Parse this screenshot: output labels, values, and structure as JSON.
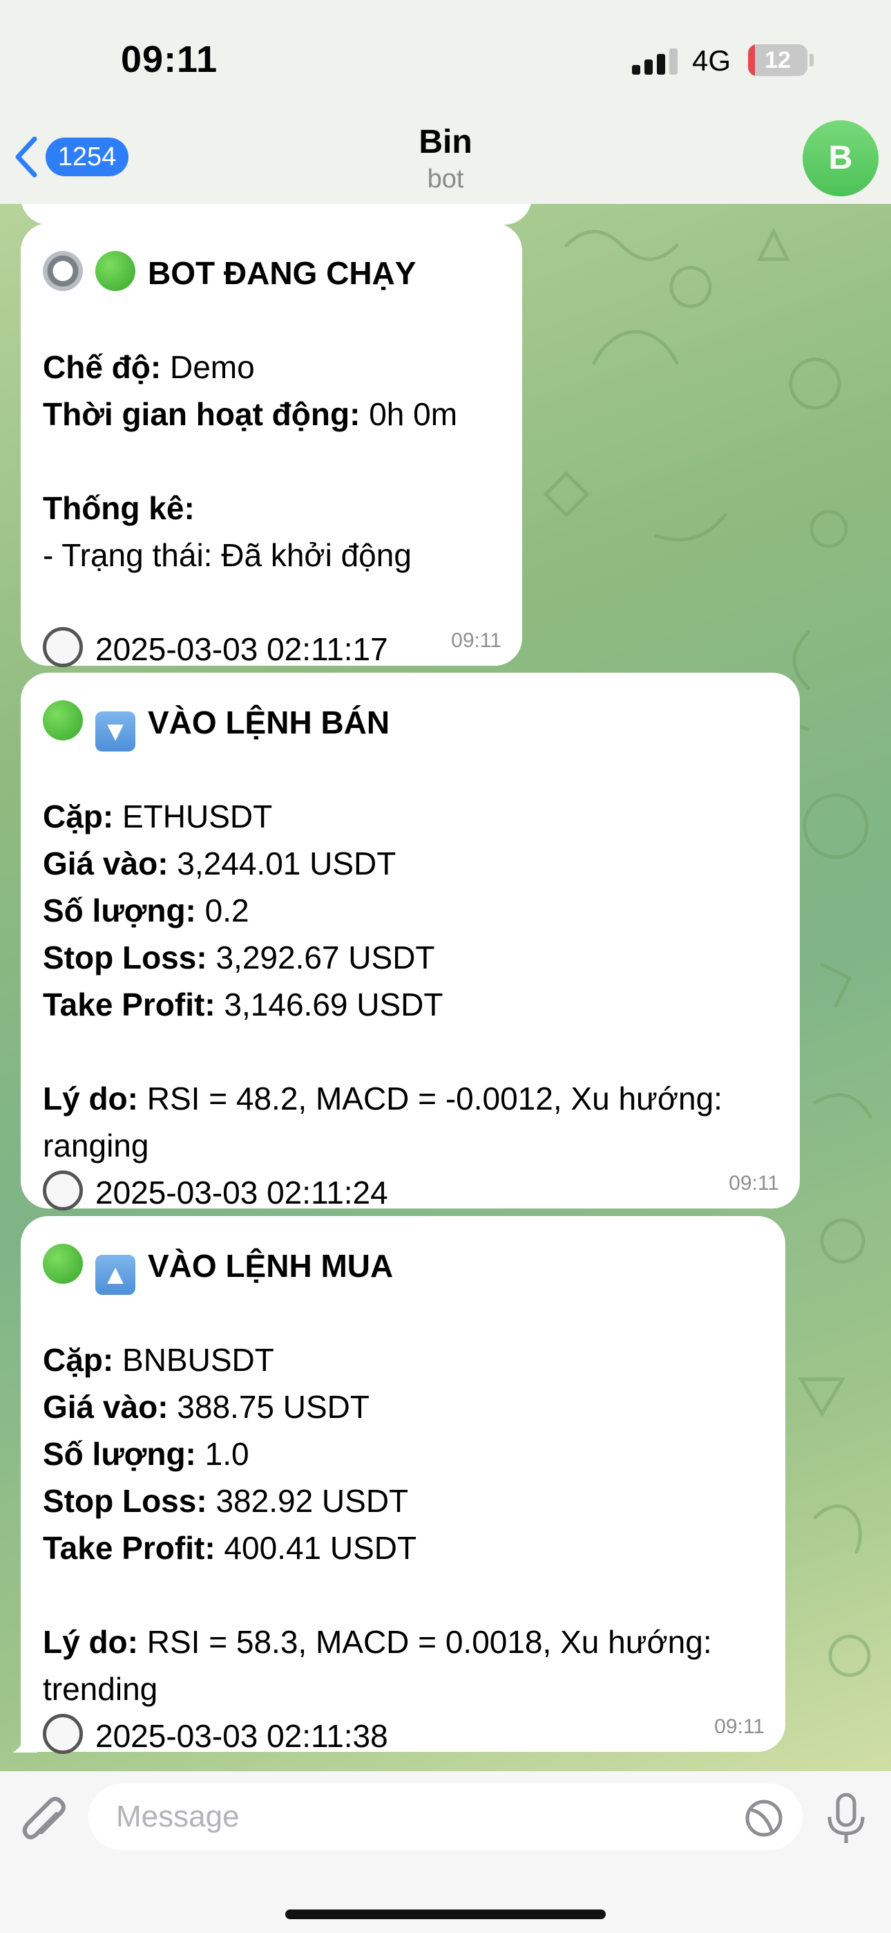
{
  "status_bar": {
    "time": "09:11",
    "network": "4G",
    "battery": "12",
    "battery_level_percent": 12,
    "signal_bars_filled": 3
  },
  "header": {
    "back_count": "1254",
    "title": "Bin",
    "subtitle": "bot",
    "avatar_letter": "B"
  },
  "messages": [
    {
      "icons": [
        "gear-icon",
        "green-circle-icon"
      ],
      "title": "BOT ĐANG CHẠY",
      "mode_label": "Chế độ:",
      "mode_value": "Demo",
      "uptime_label": "Thời gian hoạt động:",
      "uptime_value": "0h 0m",
      "stats_label": "Thống kê:",
      "stats_line": "- Trạng thái: Đã khởi động",
      "timestamp": "2025-03-03 02:11:17",
      "time": "09:11"
    },
    {
      "icons": [
        "green-circle-icon",
        "down-arrow-icon"
      ],
      "title": "VÀO LỆNH BÁN",
      "pair_label": "Cặp:",
      "pair_value": "ETHUSDT",
      "entry_label": "Giá vào:",
      "entry_value": "3,244.01 USDT",
      "qty_label": "Số lượng:",
      "qty_value": "0.2",
      "sl_label": "Stop Loss:",
      "sl_value": "3,292.67 USDT",
      "tp_label": "Take Profit:",
      "tp_value": "3,146.69 USDT",
      "reason_label": "Lý do:",
      "reason_value": "RSI = 48.2, MACD = -0.0012, Xu hướng: ranging",
      "timestamp": "2025-03-03 02:11:24",
      "time": "09:11"
    },
    {
      "icons": [
        "green-circle-icon",
        "up-arrow-icon"
      ],
      "title": "VÀO LỆNH MUA",
      "pair_label": "Cặp:",
      "pair_value": "BNBUSDT",
      "entry_label": "Giá vào:",
      "entry_value": "388.75 USDT",
      "qty_label": "Số lượng:",
      "qty_value": "1.0",
      "sl_label": "Stop Loss:",
      "sl_value": "382.92 USDT",
      "tp_label": "Take Profit:",
      "tp_value": "400.41 USDT",
      "reason_label": "Lý do:",
      "reason_value": "RSI = 58.3, MACD = 0.0018, Xu hướng: trending",
      "timestamp": "2025-03-03 02:11:38",
      "time": "09:11"
    }
  ],
  "input": {
    "placeholder": "Message"
  },
  "colors": {
    "accent": "#2e7ef7",
    "avatar": "#4cc257",
    "battery_low": "#e5484d",
    "bubble": "#ffffff"
  }
}
